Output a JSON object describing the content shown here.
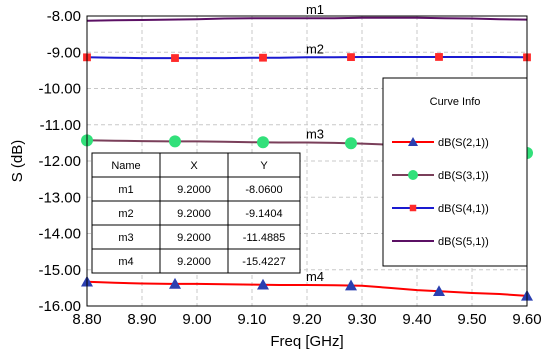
{
  "chart_data": {
    "type": "line",
    "xlabel": "Freq [GHz]",
    "ylabel": "S (dB)",
    "xlim": [
      8.8,
      9.6
    ],
    "ylim": [
      -16.0,
      -8.0
    ],
    "x_ticks": [
      "8.80",
      "8.90",
      "9.00",
      "9.10",
      "9.20",
      "9.30",
      "9.40",
      "9.50",
      "9.60"
    ],
    "y_ticks": [
      "-8.00",
      "-9.00",
      "-10.00",
      "-11.00",
      "-12.00",
      "-13.00",
      "-14.00",
      "-15.00",
      "-16.00"
    ],
    "grid": true,
    "series": [
      {
        "name": "dB(S(2,1))",
        "color": "#ff0000",
        "marker": "triangle",
        "marker_color": "#2b3fb0",
        "marker_x": [
          8.8,
          8.96,
          9.12,
          9.28,
          9.44,
          9.6
        ],
        "x": [
          8.8,
          8.85,
          8.9,
          8.95,
          9.0,
          9.05,
          9.1,
          9.15,
          9.2,
          9.25,
          9.3,
          9.35,
          9.4,
          9.45,
          9.5,
          9.55,
          9.6
        ],
        "values": [
          -15.33,
          -15.36,
          -15.38,
          -15.39,
          -15.39,
          -15.4,
          -15.41,
          -15.42,
          -15.42,
          -15.43,
          -15.44,
          -15.5,
          -15.56,
          -15.6,
          -15.64,
          -15.67,
          -15.72
        ]
      },
      {
        "name": "dB(S(3,1))",
        "color": "#7a3f5a",
        "marker": "circle",
        "marker_color": "#32e07a",
        "marker_x": [
          8.8,
          8.96,
          9.12,
          9.28,
          9.6
        ],
        "x": [
          8.8,
          8.85,
          8.9,
          8.95,
          9.0,
          9.05,
          9.1,
          9.15,
          9.2,
          9.25,
          9.3,
          9.35,
          9.4,
          9.45,
          9.5,
          9.55,
          9.6
        ],
        "values": [
          -11.43,
          -11.44,
          -11.45,
          -11.46,
          -11.46,
          -11.47,
          -11.48,
          -11.49,
          -11.49,
          -11.5,
          -11.52,
          -11.55,
          -11.59,
          -11.63,
          -11.68,
          -11.73,
          -11.78
        ]
      },
      {
        "name": "dB(S(4,1))",
        "color": "#1a1ad0",
        "marker": "square",
        "marker_color": "#ff2a2a",
        "marker_x": [
          8.8,
          8.96,
          9.12,
          9.28,
          9.44,
          9.6
        ],
        "x": [
          8.8,
          8.85,
          8.9,
          8.95,
          9.0,
          9.05,
          9.1,
          9.15,
          9.2,
          9.25,
          9.3,
          9.35,
          9.4,
          9.45,
          9.5,
          9.55,
          9.6
        ],
        "values": [
          -9.14,
          -9.15,
          -9.16,
          -9.16,
          -9.16,
          -9.16,
          -9.15,
          -9.15,
          -9.14,
          -9.14,
          -9.13,
          -9.13,
          -9.13,
          -9.13,
          -9.13,
          -9.13,
          -9.14
        ]
      },
      {
        "name": "dB(S(5,1))",
        "color": "#5b1064",
        "marker": "none",
        "marker_x": [],
        "x": [
          8.8,
          8.85,
          8.9,
          8.95,
          9.0,
          9.05,
          9.1,
          9.15,
          9.2,
          9.25,
          9.3,
          9.35,
          9.4,
          9.45,
          9.5,
          9.55,
          9.6
        ],
        "values": [
          -8.13,
          -8.12,
          -8.11,
          -8.1,
          -8.09,
          -8.07,
          -8.06,
          -8.06,
          -8.06,
          -8.06,
          -8.05,
          -8.05,
          -8.05,
          -8.06,
          -8.07,
          -8.09,
          -8.1
        ]
      }
    ],
    "markers": [
      {
        "label": "m1",
        "x": 9.2,
        "y": -8.06
      },
      {
        "label": "m2",
        "x": 9.2,
        "y": -9.1404
      },
      {
        "label": "m3",
        "x": 9.2,
        "y": -11.4885
      },
      {
        "label": "m4",
        "x": 9.2,
        "y": -15.4227
      }
    ],
    "marker_table": {
      "headers": [
        "Name",
        "X",
        "Y"
      ],
      "rows": [
        [
          "m1",
          "9.2000",
          "-8.0600"
        ],
        [
          "m2",
          "9.2000",
          "-9.1404"
        ],
        [
          "m3",
          "9.2000",
          "-11.4885"
        ],
        [
          "m4",
          "9.2000",
          "-15.4227"
        ]
      ]
    },
    "legend": {
      "title": "Curve Info",
      "placement": "right"
    }
  }
}
